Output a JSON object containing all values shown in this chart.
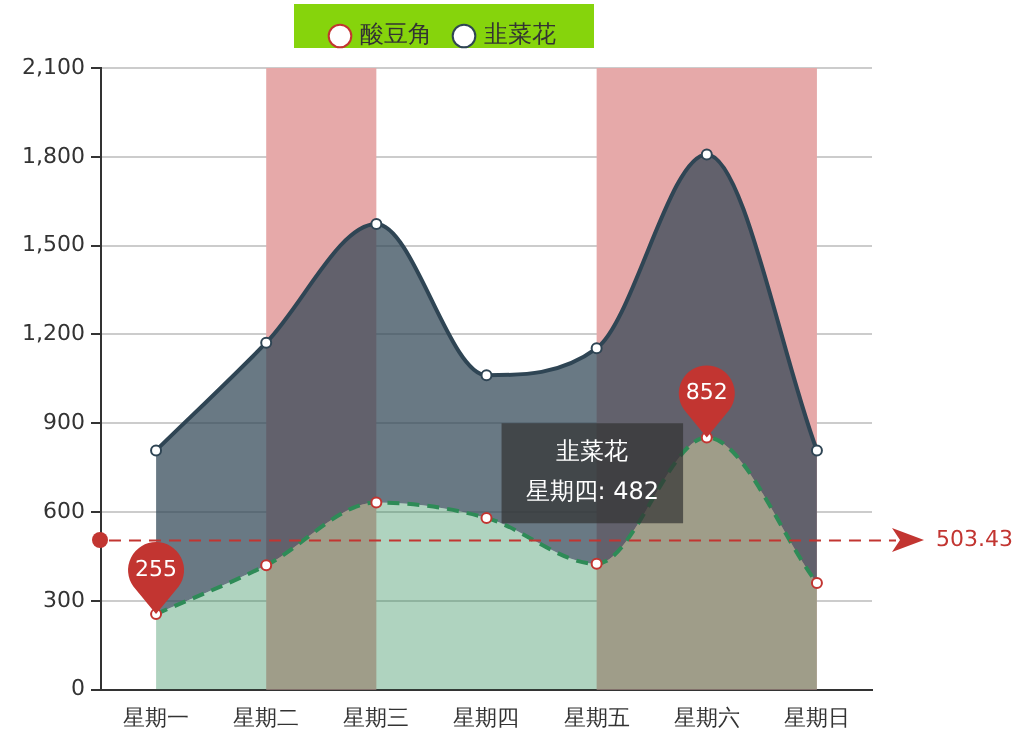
{
  "chart_data": {
    "type": "area",
    "stacked": true,
    "categories": [
      "星期一",
      "星期二",
      "星期三",
      "星期四",
      "星期五",
      "星期六",
      "星期日"
    ],
    "series": [
      {
        "name": "酸豆角",
        "color": "#2e8b57",
        "line_style": "dashed",
        "values": [
          255,
          420,
          632,
          580,
          425,
          852,
          360
        ]
      },
      {
        "name": "韭菜花",
        "color": "#2f4554",
        "line_style": "solid",
        "values": [
          553,
          752,
          941,
          482,
          728,
          956,
          448
        ]
      }
    ],
    "ylim": [
      0,
      2100
    ],
    "yticks": [
      0,
      {
        "value": 300,
        "label": "300"
      },
      {
        "value": 600,
        "label": "600"
      },
      {
        "value": 900,
        "label": "900"
      },
      {
        "value": 1200,
        "label": "1,200"
      },
      {
        "value": 1500,
        "label": "1,500"
      },
      {
        "value": 1800,
        "label": "1,800"
      },
      {
        "value": 2100,
        "label": "2,100"
      }
    ],
    "grid": "y",
    "legend": "top",
    "marker": "circle",
    "bands": [
      {
        "axis": "x",
        "from": "星期二",
        "to": "星期三",
        "color": "#e6a9a9"
      },
      {
        "axis": "x",
        "from": "星期五",
        "to": "星期日",
        "color": "#e6a9a9"
      }
    ],
    "ref_lines": [
      {
        "axis": "y",
        "value": 503.43,
        "label": "503.43",
        "color": "#c23531",
        "line_style": "dashed"
      }
    ],
    "annotations": [
      {
        "text": "255",
        "x": "星期一",
        "y": 255
      },
      {
        "text": "852",
        "x": "星期六",
        "y": 852
      },
      "韭菜花",
      "星期四: 482"
    ]
  }
}
